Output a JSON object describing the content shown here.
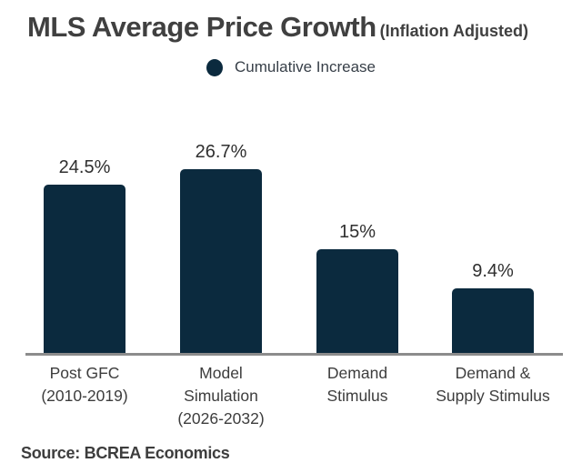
{
  "header": {
    "title": "MLS Average Price Growth",
    "suffix": "(Inflation Adjusted)"
  },
  "legend": {
    "label": "Cumulative Increase"
  },
  "source": "Source: BCREA Economics",
  "colors": {
    "bar": "#0b2a3e",
    "title_text": "#404040",
    "axis_line": "#8c8c8c",
    "category_text": "#3d3d3d",
    "value_text": "#2f2f2f"
  },
  "chart_data": {
    "type": "bar",
    "title": "MLS Average Price Growth (Inflation Adjusted)",
    "categories": [
      "Post GFC\n(2010-2019)",
      "Model\nSimulation\n(2026-2032)",
      "Demand\nStimulus",
      "Demand &\nSupply Stimulus"
    ],
    "values": [
      24.5,
      26.7,
      15,
      9.4
    ],
    "value_labels": [
      "24.5%",
      "26.7%",
      "15%",
      "9.4%"
    ],
    "series_name": "Cumulative Increase",
    "unit": "%",
    "ylim": [
      0,
      30
    ],
    "grid": false,
    "legend_position": "top-center",
    "source": "Source: BCREA Economics"
  }
}
